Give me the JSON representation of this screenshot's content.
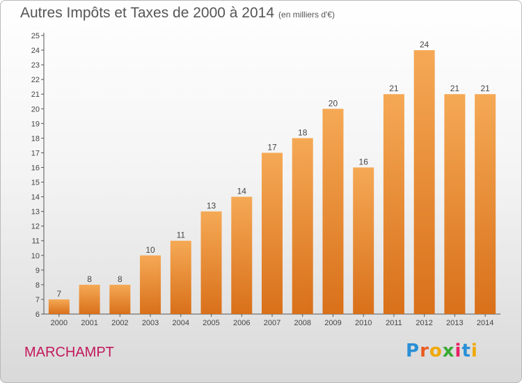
{
  "header": {
    "title": "Autres Impôts et Taxes de 2000 à 2014",
    "unit": "(en milliers d'€)"
  },
  "place_name": "MARCHAMPT",
  "logo_text": "Proxiti",
  "colors": {
    "bar_top": "#f5a955",
    "bar_bottom": "#d9701a",
    "axis": "#555555",
    "grid": "#cccccc",
    "place": "#c2185b"
  },
  "chart_data": {
    "type": "bar",
    "title": "Autres Impôts et Taxes de 2000 à 2014",
    "subtitle": "(en milliers d'€)",
    "xlabel": "",
    "ylabel": "",
    "categories": [
      "2000",
      "2001",
      "2002",
      "2003",
      "2004",
      "2005",
      "2006",
      "2007",
      "2008",
      "2009",
      "2010",
      "2011",
      "2012",
      "2013",
      "2014"
    ],
    "values": [
      7,
      8,
      8,
      10,
      11,
      13,
      14,
      17,
      18,
      20,
      16,
      21,
      24,
      21,
      21
    ],
    "ylim": [
      6,
      25
    ],
    "yticks": [
      6,
      7,
      8,
      9,
      10,
      11,
      12,
      13,
      14,
      15,
      16,
      17,
      18,
      19,
      20,
      21,
      22,
      23,
      24,
      25
    ],
    "grid": false,
    "legend": "none",
    "data_labels": true
  }
}
